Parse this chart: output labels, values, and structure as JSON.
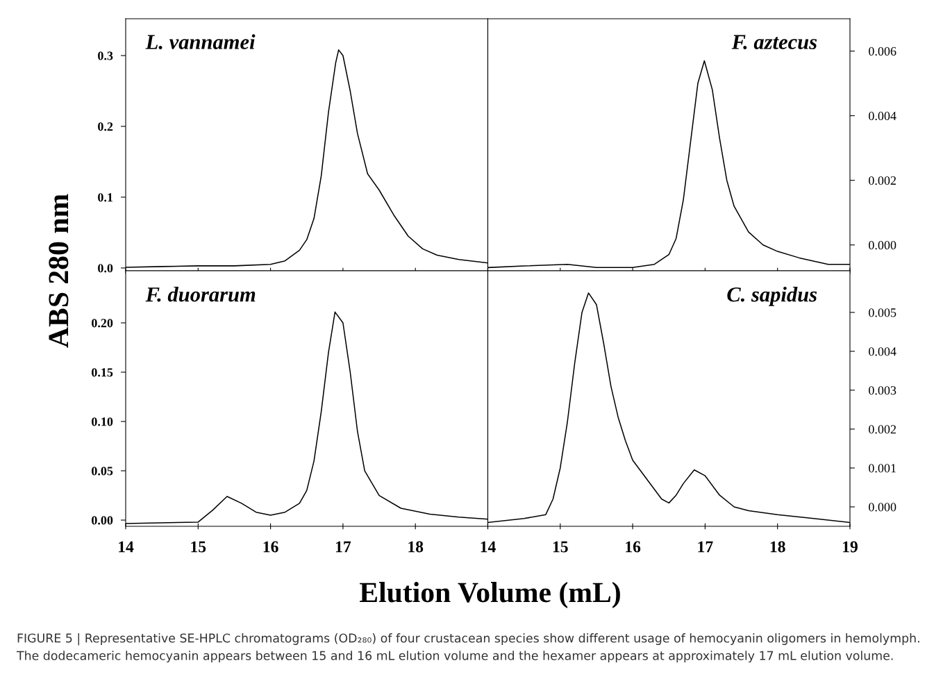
{
  "chart_data": [
    {
      "type": "line",
      "title": "L. vannamei",
      "ylabel": "ABS 280 nm",
      "tick_labels": "y",
      "xlim": [
        14,
        19
      ],
      "xticks": [
        14,
        15,
        16,
        17,
        18,
        19
      ],
      "ylim": [
        -0.004,
        0.352
      ],
      "yticks": [
        {
          "value": 0.0,
          "label": "0.0"
        },
        0.1,
        0.2,
        0.3
      ],
      "series": [
        {
          "color": "#000000",
          "x": [
            14,
            14.5,
            15.0,
            15.5,
            16.0,
            16.2,
            16.4,
            16.5,
            16.6,
            16.7,
            16.8,
            16.9,
            16.94,
            17.0,
            17.1,
            17.2,
            17.34,
            17.5,
            17.7,
            17.9,
            18.1,
            18.3,
            18.6,
            19.0
          ],
          "values": [
            0.001,
            0.002,
            0.003,
            0.003,
            0.005,
            0.01,
            0.025,
            0.04,
            0.07,
            0.13,
            0.22,
            0.29,
            0.308,
            0.3,
            0.25,
            0.19,
            0.133,
            0.11,
            0.075,
            0.045,
            0.027,
            0.018,
            0.012,
            0.007
          ]
        }
      ]
    },
    {
      "type": "line",
      "title": "F. aztecus",
      "tick_labels": "y",
      "xlim": [
        14,
        19
      ],
      "xticks": [
        14,
        15,
        16,
        17,
        18,
        19
      ],
      "ylim": [
        -0.0008,
        0.007
      ],
      "yticks": [
        {
          "value": 0.0,
          "label": "0.000"
        },
        {
          "value": 0.002,
          "label": "0.002"
        },
        {
          "value": 0.004,
          "label": "0.004"
        },
        {
          "value": 0.006,
          "label": "0.006"
        }
      ],
      "series": [
        {
          "color": "#000000",
          "x": [
            14,
            14.5,
            15.1,
            15.5,
            16.0,
            16.3,
            16.5,
            16.6,
            16.7,
            16.8,
            16.9,
            16.99,
            17.1,
            17.2,
            17.3,
            17.4,
            17.6,
            17.8,
            18.0,
            18.3,
            18.7,
            19.0
          ],
          "values": [
            -0.0007,
            -0.00065,
            -0.0006,
            -0.0007,
            -0.0007,
            -0.0006,
            -0.0003,
            0.0002,
            0.0014,
            0.0032,
            0.005,
            0.0057,
            0.0048,
            0.0033,
            0.002,
            0.0012,
            0.0004,
            0.0,
            -0.0002,
            -0.0004,
            -0.0006,
            -0.0006
          ]
        }
      ]
    },
    {
      "type": "line",
      "title": "F. duorarum",
      "xlabel": "Elution Volume (mL)",
      "xlim": [
        14,
        19
      ],
      "xticks": [
        14,
        15,
        16,
        17,
        18,
        {
          "value": 19,
          "label": null
        }
      ],
      "ylim": [
        -0.0063,
        0.2528
      ],
      "yticks": [
        {
          "value": 0.0,
          "label": "0.00"
        },
        {
          "value": 0.05,
          "label": "0.05"
        },
        {
          "value": 0.1,
          "label": "0.10"
        },
        {
          "value": 0.15,
          "label": "0.15"
        },
        {
          "value": 0.2,
          "label": "0.20"
        }
      ],
      "series": [
        {
          "color": "#000000",
          "x": [
            14,
            15.0,
            15.2,
            15.4,
            15.6,
            15.8,
            16.0,
            16.2,
            16.4,
            16.5,
            16.6,
            16.7,
            16.8,
            16.89,
            17.0,
            17.1,
            17.2,
            17.3,
            17.5,
            17.8,
            18.2,
            18.6,
            19.0
          ],
          "values": [
            -0.0035,
            -0.002,
            0.01,
            0.024,
            0.017,
            0.008,
            0.005,
            0.008,
            0.017,
            0.03,
            0.06,
            0.11,
            0.17,
            0.211,
            0.2,
            0.15,
            0.09,
            0.05,
            0.025,
            0.012,
            0.006,
            0.003,
            0.001
          ]
        }
      ]
    },
    {
      "type": "line",
      "title": "C. sapidus",
      "xlim": [
        14,
        19
      ],
      "xticks": [
        14,
        15,
        16,
        17,
        18,
        19
      ],
      "ylim": [
        -0.0005,
        0.00607
      ],
      "yticks": [
        {
          "value": 0.0,
          "label": "0.000"
        },
        {
          "value": 0.001,
          "label": "0.001"
        },
        {
          "value": 0.002,
          "label": "0.002"
        },
        {
          "value": 0.003,
          "label": "0.003"
        },
        {
          "value": 0.004,
          "label": "0.004"
        },
        {
          "value": 0.005,
          "label": "0.005"
        }
      ],
      "annotations": [
        "FIGURE 5 | Representative SE-HPLC chromatograms (OD₂₈₀) of four crustacean species show different usage of hemocyanin oligomers in hemolymph. The dodecameric hemocyanin appears between 15 and 16 mL elution volume and the hexamer appears at approximately 17 mL elution volume."
      ],
      "series": [
        {
          "color": "#000000",
          "x": [
            14,
            14.5,
            14.8,
            14.9,
            15.0,
            15.1,
            15.2,
            15.3,
            15.39,
            15.5,
            15.6,
            15.7,
            15.8,
            15.9,
            16.0,
            16.2,
            16.4,
            16.5,
            16.6,
            16.7,
            16.85,
            17.0,
            17.2,
            17.4,
            17.6,
            18.0,
            18.5,
            19.0
          ],
          "values": [
            -0.0004,
            -0.0003,
            -0.0002,
            0.0002,
            0.001,
            0.0022,
            0.0037,
            0.005,
            0.0055,
            0.0052,
            0.0042,
            0.0031,
            0.0023,
            0.0017,
            0.0012,
            0.0007,
            0.0002,
            0.0001,
            0.0003,
            0.0006,
            0.00095,
            0.0008,
            0.0003,
            0.0,
            -0.0001,
            -0.0002,
            -0.0003,
            -0.0004
          ]
        }
      ]
    }
  ]
}
